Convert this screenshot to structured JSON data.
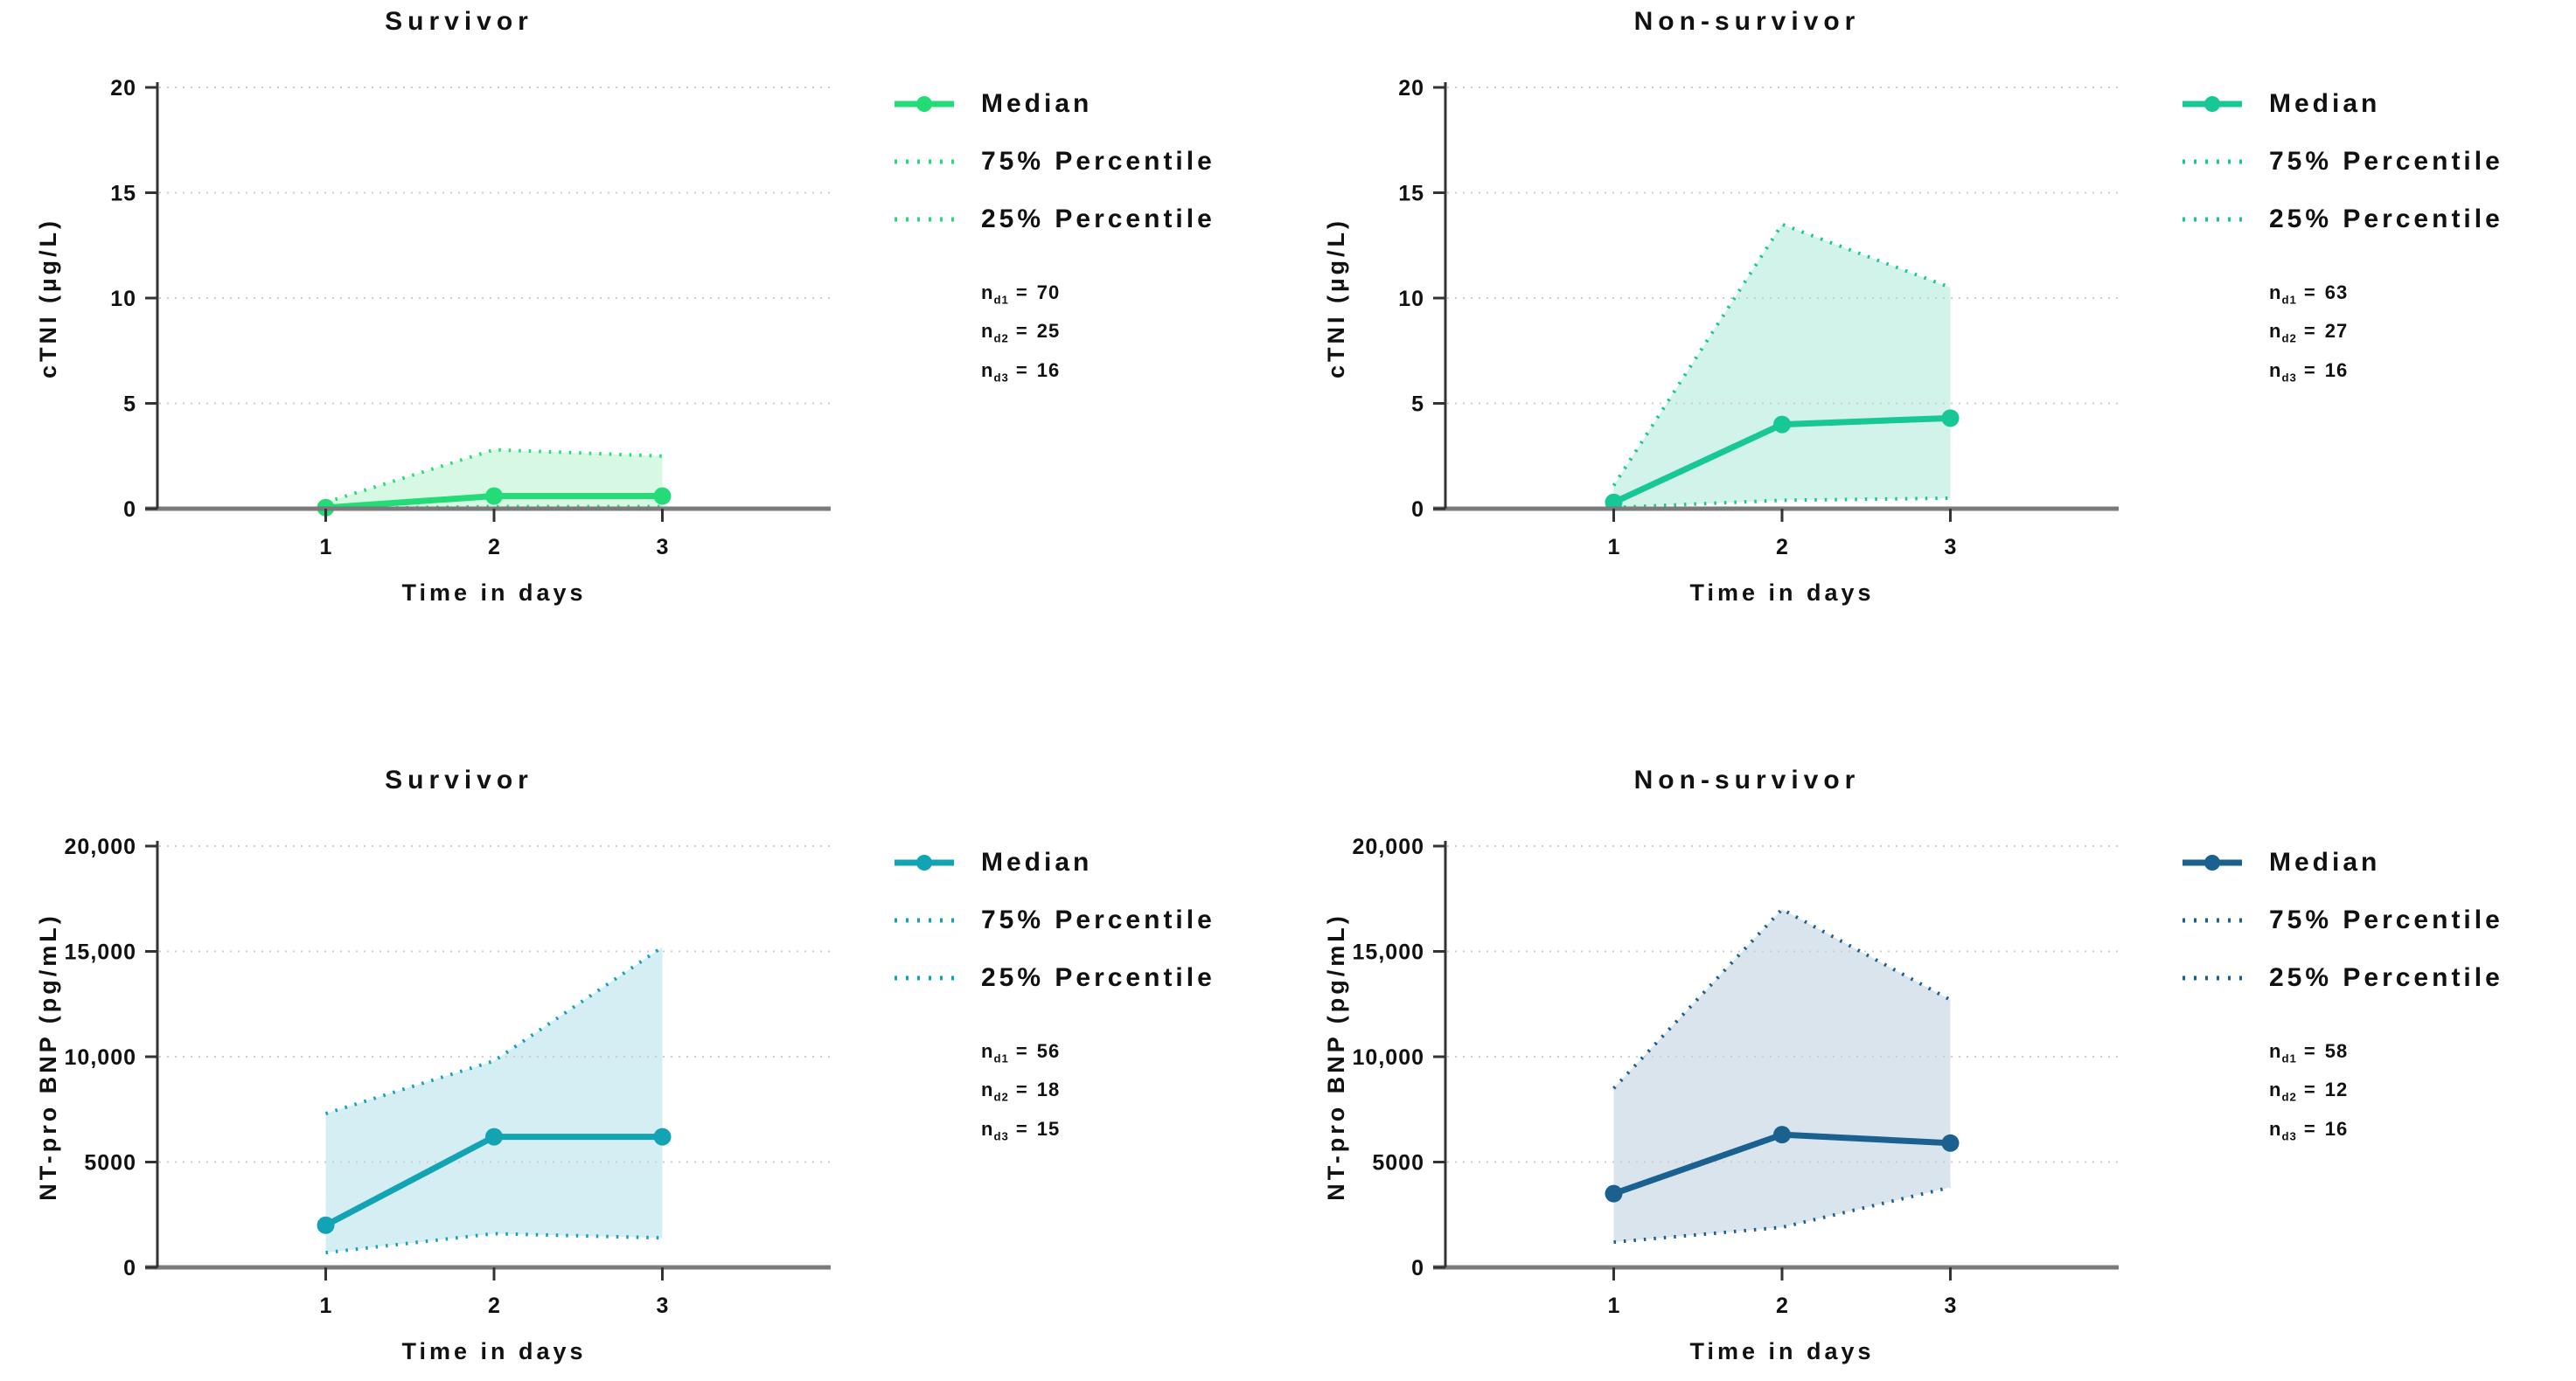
{
  "chart_data": [
    {
      "type": "line",
      "title": "Survivor",
      "xlabel": "Time in days",
      "ylabel": "cTNI (µg/L)",
      "x": [
        1,
        2,
        3
      ],
      "xtick_labels": [
        "1",
        "2",
        "3"
      ],
      "ylim": [
        0,
        20
      ],
      "yticks": [
        {
          "value": 0,
          "label": "0"
        },
        {
          "value": 5,
          "label": "5"
        },
        {
          "value": 10,
          "label": "10"
        },
        {
          "value": 15,
          "label": "15"
        },
        {
          "value": 20,
          "label": "20"
        }
      ],
      "grid": "dotted-horizontal",
      "legend": [
        "Median",
        "75% Percentile",
        "25% Percentile"
      ],
      "legend_position": "right",
      "series": [
        {
          "name": "Median",
          "style": "solid-markers",
          "values": [
            0.05,
            0.6,
            0.6
          ]
        },
        {
          "name": "75% Percentile",
          "style": "dotted",
          "values": [
            0.3,
            2.8,
            2.5
          ]
        },
        {
          "name": "25% Percentile",
          "style": "dotted",
          "values": [
            0.0,
            0.1,
            0.1
          ]
        }
      ],
      "band_fill_between": [
        "75% Percentile",
        "25% Percentile"
      ],
      "line_color": "#23dc78",
      "fill_color": "#d7f9e4",
      "n_annotations": [
        {
          "base": "n",
          "sub": "d1",
          "eq": "=",
          "value": "70"
        },
        {
          "base": "n",
          "sub": "d2",
          "eq": "=",
          "value": "25"
        },
        {
          "base": "n",
          "sub": "d3",
          "eq": "=",
          "value": "16"
        }
      ]
    },
    {
      "type": "line",
      "title": "Non-survivor",
      "xlabel": "Time in days",
      "ylabel": "cTNI (µg/L)",
      "x": [
        1,
        2,
        3
      ],
      "xtick_labels": [
        "1",
        "2",
        "3"
      ],
      "ylim": [
        0,
        20
      ],
      "yticks": [
        {
          "value": 0,
          "label": "0"
        },
        {
          "value": 5,
          "label": "5"
        },
        {
          "value": 10,
          "label": "10"
        },
        {
          "value": 15,
          "label": "15"
        },
        {
          "value": 20,
          "label": "20"
        }
      ],
      "grid": "dotted-horizontal",
      "legend": [
        "Median",
        "75% Percentile",
        "25% Percentile"
      ],
      "legend_position": "right",
      "series": [
        {
          "name": "Median",
          "style": "solid-markers",
          "values": [
            0.3,
            4.0,
            4.3
          ]
        },
        {
          "name": "75% Percentile",
          "style": "dotted",
          "values": [
            1.1,
            13.5,
            10.5
          ]
        },
        {
          "name": "25% Percentile",
          "style": "dotted",
          "values": [
            0.05,
            0.4,
            0.5
          ]
        }
      ],
      "band_fill_between": [
        "75% Percentile",
        "25% Percentile"
      ],
      "line_color": "#17c795",
      "fill_color": "#d2f3e9",
      "n_annotations": [
        {
          "base": "n",
          "sub": "d1",
          "eq": "=",
          "value": "63"
        },
        {
          "base": "n",
          "sub": "d2",
          "eq": "=",
          "value": "27"
        },
        {
          "base": "n",
          "sub": "d3",
          "eq": "=",
          "value": "16"
        }
      ]
    },
    {
      "type": "line",
      "title": "Survivor",
      "xlabel": "Time in days",
      "ylabel": "NT-pro BNP (pg/mL)",
      "x": [
        1,
        2,
        3
      ],
      "xtick_labels": [
        "1",
        "2",
        "3"
      ],
      "ylim": [
        0,
        20000
      ],
      "yticks": [
        {
          "value": 0,
          "label": "0"
        },
        {
          "value": 5000,
          "label": "5000"
        },
        {
          "value": 10000,
          "label": "10,000"
        },
        {
          "value": 15000,
          "label": "15,000"
        },
        {
          "value": 20000,
          "label": "20,000"
        }
      ],
      "grid": "dotted-horizontal",
      "legend": [
        "Median",
        "75% Percentile",
        "25% Percentile"
      ],
      "legend_position": "right",
      "series": [
        {
          "name": "Median",
          "style": "solid-markers",
          "values": [
            2000,
            6200,
            6200
          ]
        },
        {
          "name": "75% Percentile",
          "style": "dotted",
          "values": [
            7300,
            9800,
            15200
          ]
        },
        {
          "name": "25% Percentile",
          "style": "dotted",
          "values": [
            700,
            1600,
            1400
          ]
        }
      ],
      "band_fill_between": [
        "75% Percentile",
        "25% Percentile"
      ],
      "line_color": "#12a3b4",
      "fill_color": "#d4eef3",
      "n_annotations": [
        {
          "base": "n",
          "sub": "d1",
          "eq": "=",
          "value": "56"
        },
        {
          "base": "n",
          "sub": "d2",
          "eq": "=",
          "value": "18"
        },
        {
          "base": "n",
          "sub": "d3",
          "eq": "=",
          "value": "15"
        }
      ]
    },
    {
      "type": "line",
      "title": "Non-survivor",
      "xlabel": "Time in days",
      "ylabel": "NT-pro BNP (pg/mL)",
      "x": [
        1,
        2,
        3
      ],
      "xtick_labels": [
        "1",
        "2",
        "3"
      ],
      "ylim": [
        0,
        20000
      ],
      "yticks": [
        {
          "value": 0,
          "label": "0"
        },
        {
          "value": 5000,
          "label": "5000"
        },
        {
          "value": 10000,
          "label": "10,000"
        },
        {
          "value": 15000,
          "label": "15,000"
        },
        {
          "value": 20000,
          "label": "20,000"
        }
      ],
      "grid": "dotted-horizontal",
      "legend": [
        "Median",
        "75% Percentile",
        "25% Percentile"
      ],
      "legend_position": "right",
      "series": [
        {
          "name": "Median",
          "style": "solid-markers",
          "values": [
            3500,
            6300,
            5900
          ]
        },
        {
          "name": "75% Percentile",
          "style": "dotted",
          "values": [
            8500,
            17000,
            12700
          ]
        },
        {
          "name": "25% Percentile",
          "style": "dotted",
          "values": [
            1200,
            1900,
            3800
          ]
        }
      ],
      "band_fill_between": [
        "75% Percentile",
        "25% Percentile"
      ],
      "line_color": "#1a6190",
      "fill_color": "#d9e4ed",
      "n_annotations": [
        {
          "base": "n",
          "sub": "d1",
          "eq": "=",
          "value": "58"
        },
        {
          "base": "n",
          "sub": "d2",
          "eq": "=",
          "value": "12"
        },
        {
          "base": "n",
          "sub": "d3",
          "eq": "=",
          "value": "16"
        }
      ]
    }
  ]
}
